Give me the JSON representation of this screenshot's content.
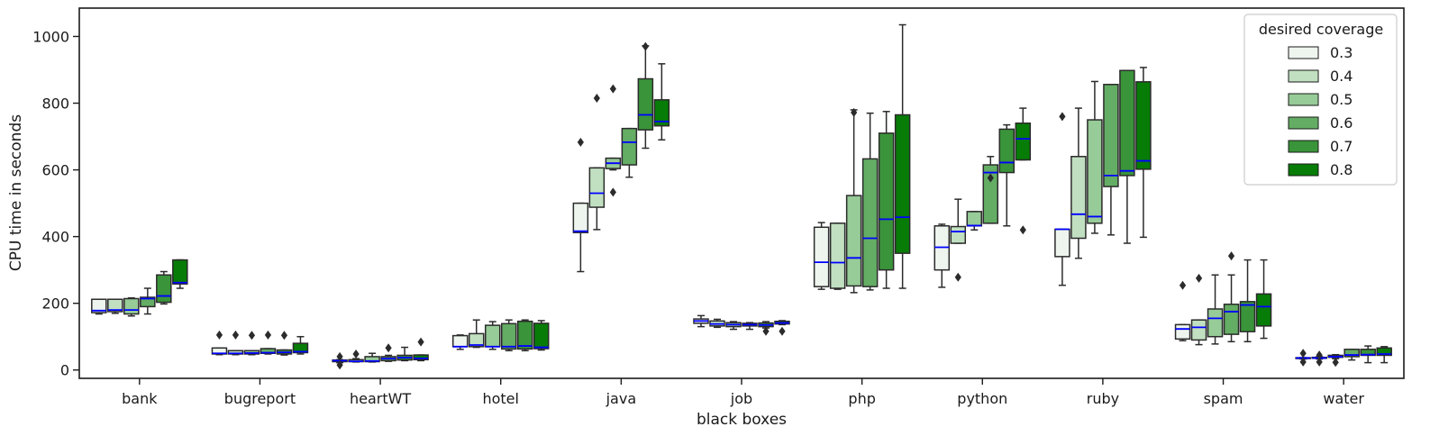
{
  "chart_data": {
    "type": "box",
    "xlabel": "black boxes",
    "ylabel": "CPU time in seconds",
    "ylim": [
      -25,
      1085
    ],
    "yticks": [
      0,
      200,
      400,
      600,
      800,
      1000
    ],
    "grid": false,
    "median_color": "#0000ff",
    "categories": [
      "bank",
      "bugreport",
      "heartWT",
      "hotel",
      "java",
      "job",
      "php",
      "python",
      "ruby",
      "spam",
      "water"
    ],
    "legend": {
      "title": "desired coverage",
      "placement": "top-right",
      "entries": [
        {
          "label": "0.3",
          "color": "#eef5ee"
        },
        {
          "label": "0.4",
          "color": "#c1e0c1"
        },
        {
          "label": "0.5",
          "color": "#97cb97"
        },
        {
          "label": "0.6",
          "color": "#64ad64"
        },
        {
          "label": "0.7",
          "color": "#3a943a"
        },
        {
          "label": "0.8",
          "color": "#077c07"
        }
      ]
    },
    "series": [
      {
        "name": "0.3",
        "values": [
          {
            "wl": 168,
            "q1": 172,
            "med": 178,
            "q3": 212,
            "wh": 212,
            "out": []
          },
          {
            "wl": 46,
            "q1": 48,
            "med": 50,
            "q3": 66,
            "wh": 66,
            "out": [
              105
            ]
          },
          {
            "wl": 22,
            "q1": 25,
            "med": 28,
            "q3": 30,
            "wh": 31,
            "out": [
              15,
              40
            ]
          },
          {
            "wl": 62,
            "q1": 70,
            "med": 70,
            "q3": 103,
            "wh": 105,
            "out": []
          },
          {
            "wl": 295,
            "q1": 412,
            "med": 416,
            "q3": 500,
            "wh": 500,
            "out": [
              683
            ]
          },
          {
            "wl": 130,
            "q1": 140,
            "med": 147,
            "q3": 153,
            "wh": 163,
            "out": []
          },
          {
            "wl": 242,
            "q1": 250,
            "med": 323,
            "q3": 428,
            "wh": 442,
            "out": []
          },
          {
            "wl": 248,
            "q1": 300,
            "med": 368,
            "q3": 432,
            "wh": 437,
            "out": []
          },
          {
            "wl": 254,
            "q1": 340,
            "med": 422,
            "q3": 422,
            "wh": 422,
            "out": [
              760
            ]
          },
          {
            "wl": 88,
            "q1": 93,
            "med": 123,
            "q3": 136,
            "wh": 136,
            "out": [
              254
            ]
          },
          {
            "wl": 33,
            "q1": 35,
            "med": 36,
            "q3": 37,
            "wh": 37,
            "out": [
              50,
              24
            ]
          }
        ]
      },
      {
        "name": "0.4",
        "values": [
          {
            "wl": 170,
            "q1": 175,
            "med": 180,
            "q3": 212,
            "wh": 212,
            "out": []
          },
          {
            "wl": 46,
            "q1": 48,
            "med": 50,
            "q3": 58,
            "wh": 58,
            "out": [
              105
            ]
          },
          {
            "wl": 24,
            "q1": 25,
            "med": 26,
            "q3": 31,
            "wh": 34,
            "out": [
              48
            ]
          },
          {
            "wl": 68,
            "q1": 70,
            "med": 75,
            "q3": 109,
            "wh": 150,
            "out": []
          },
          {
            "wl": 421,
            "q1": 488,
            "med": 530,
            "q3": 606,
            "wh": 606,
            "out": [
              815
            ]
          },
          {
            "wl": 128,
            "q1": 132,
            "med": 138,
            "q3": 147,
            "wh": 152,
            "out": []
          },
          {
            "wl": 242,
            "q1": 245,
            "med": 322,
            "q3": 440,
            "wh": 440,
            "out": []
          },
          {
            "wl": 380,
            "q1": 380,
            "med": 415,
            "q3": 430,
            "wh": 512,
            "out": [
              278
            ]
          },
          {
            "wl": 335,
            "q1": 395,
            "med": 467,
            "q3": 640,
            "wh": 785,
            "out": []
          },
          {
            "wl": 76,
            "q1": 90,
            "med": 128,
            "q3": 150,
            "wh": 150,
            "out": [
              275
            ]
          },
          {
            "wl": 33,
            "q1": 35,
            "med": 36,
            "q3": 38,
            "wh": 40,
            "out": [
              45,
              24
            ]
          }
        ]
      },
      {
        "name": "0.5",
        "values": [
          {
            "wl": 162,
            "q1": 168,
            "med": 180,
            "q3": 214,
            "wh": 216,
            "out": []
          },
          {
            "wl": 46,
            "q1": 48,
            "med": 51,
            "q3": 58,
            "wh": 58,
            "out": [
              104
            ]
          },
          {
            "wl": 24,
            "q1": 25,
            "med": 27,
            "q3": 40,
            "wh": 50,
            "out": []
          },
          {
            "wl": 62,
            "q1": 70,
            "med": 70,
            "q3": 134,
            "wh": 145,
            "out": []
          },
          {
            "wl": 600,
            "q1": 604,
            "med": 620,
            "q3": 635,
            "wh": 635,
            "out": [
              843,
              533
            ]
          },
          {
            "wl": 122,
            "q1": 130,
            "med": 136,
            "q3": 142,
            "wh": 145,
            "out": []
          },
          {
            "wl": 232,
            "q1": 252,
            "med": 336,
            "q3": 523,
            "wh": 780,
            "out": [
              772
            ]
          },
          {
            "wl": 420,
            "q1": 432,
            "med": 433,
            "q3": 475,
            "wh": 475,
            "out": []
          },
          {
            "wl": 410,
            "q1": 440,
            "med": 460,
            "q3": 750,
            "wh": 865,
            "out": []
          },
          {
            "wl": 78,
            "q1": 100,
            "med": 155,
            "q3": 183,
            "wh": 285,
            "out": []
          },
          {
            "wl": 34,
            "q1": 38,
            "med": 40,
            "q3": 44,
            "wh": 46,
            "out": [
              23
            ]
          }
        ]
      },
      {
        "name": "0.6",
        "values": [
          {
            "wl": 168,
            "q1": 190,
            "med": 214,
            "q3": 218,
            "wh": 245,
            "out": []
          },
          {
            "wl": 48,
            "q1": 50,
            "med": 52,
            "q3": 64,
            "wh": 64,
            "out": [
              105
            ]
          },
          {
            "wl": 26,
            "q1": 28,
            "med": 34,
            "q3": 40,
            "wh": 44,
            "out": [
              66
            ]
          },
          {
            "wl": 58,
            "q1": 63,
            "med": 70,
            "q3": 139,
            "wh": 150,
            "out": []
          },
          {
            "wl": 578,
            "q1": 615,
            "med": 683,
            "q3": 724,
            "wh": 724,
            "out": []
          },
          {
            "wl": 122,
            "q1": 132,
            "med": 136,
            "q3": 140,
            "wh": 142,
            "out": []
          },
          {
            "wl": 240,
            "q1": 250,
            "med": 395,
            "q3": 633,
            "wh": 770,
            "out": []
          },
          {
            "wl": 440,
            "q1": 440,
            "med": 592,
            "q3": 615,
            "wh": 640,
            "out": [
              576
            ]
          },
          {
            "wl": 405,
            "q1": 550,
            "med": 583,
            "q3": 856,
            "wh": 856,
            "out": []
          },
          {
            "wl": 85,
            "q1": 107,
            "med": 175,
            "q3": 197,
            "wh": 285,
            "out": [
              342
            ]
          },
          {
            "wl": 30,
            "q1": 40,
            "med": 45,
            "q3": 62,
            "wh": 62,
            "out": []
          }
        ]
      },
      {
        "name": "0.7",
        "values": [
          {
            "wl": 198,
            "q1": 203,
            "med": 222,
            "q3": 285,
            "wh": 295,
            "out": []
          },
          {
            "wl": 45,
            "q1": 48,
            "med": 53,
            "q3": 60,
            "wh": 60,
            "out": [
              104
            ]
          },
          {
            "wl": 28,
            "q1": 30,
            "med": 37,
            "q3": 44,
            "wh": 68,
            "out": []
          },
          {
            "wl": 58,
            "q1": 63,
            "med": 72,
            "q3": 146,
            "wh": 150,
            "out": []
          },
          {
            "wl": 665,
            "q1": 720,
            "med": 765,
            "q3": 873,
            "wh": 972,
            "out": [
              970
            ]
          },
          {
            "wl": 126,
            "q1": 130,
            "med": 135,
            "q3": 141,
            "wh": 145,
            "out": [
              116
            ]
          },
          {
            "wl": 245,
            "q1": 300,
            "med": 452,
            "q3": 710,
            "wh": 775,
            "out": []
          },
          {
            "wl": 432,
            "q1": 592,
            "med": 622,
            "q3": 722,
            "wh": 735,
            "out": []
          },
          {
            "wl": 380,
            "q1": 583,
            "med": 597,
            "q3": 898,
            "wh": 898,
            "out": []
          },
          {
            "wl": 85,
            "q1": 115,
            "med": 195,
            "q3": 205,
            "wh": 330,
            "out": []
          },
          {
            "wl": 22,
            "q1": 44,
            "med": 46,
            "q3": 62,
            "wh": 72,
            "out": []
          }
        ]
      },
      {
        "name": "0.8",
        "values": [
          {
            "wl": 245,
            "q1": 258,
            "med": 262,
            "q3": 330,
            "wh": 330,
            "out": []
          },
          {
            "wl": 48,
            "q1": 52,
            "med": 55,
            "q3": 80,
            "wh": 100,
            "out": []
          },
          {
            "wl": 28,
            "q1": 31,
            "med": 35,
            "q3": 45,
            "wh": 45,
            "out": [
              84
            ]
          },
          {
            "wl": 60,
            "q1": 64,
            "med": 68,
            "q3": 140,
            "wh": 148,
            "out": []
          },
          {
            "wl": 690,
            "q1": 732,
            "med": 745,
            "q3": 810,
            "wh": 918,
            "out": []
          },
          {
            "wl": 136,
            "q1": 138,
            "med": 141,
            "q3": 146,
            "wh": 148,
            "out": [
              116
            ]
          },
          {
            "wl": 245,
            "q1": 350,
            "med": 458,
            "q3": 765,
            "wh": 1035,
            "out": []
          },
          {
            "wl": 630,
            "q1": 630,
            "med": 693,
            "q3": 740,
            "wh": 785,
            "out": [
              420
            ]
          },
          {
            "wl": 398,
            "q1": 602,
            "med": 627,
            "q3": 864,
            "wh": 907,
            "out": []
          },
          {
            "wl": 95,
            "q1": 132,
            "med": 190,
            "q3": 228,
            "wh": 330,
            "out": []
          },
          {
            "wl": 22,
            "q1": 44,
            "med": 48,
            "q3": 66,
            "wh": 70,
            "out": []
          }
        ]
      }
    ]
  }
}
